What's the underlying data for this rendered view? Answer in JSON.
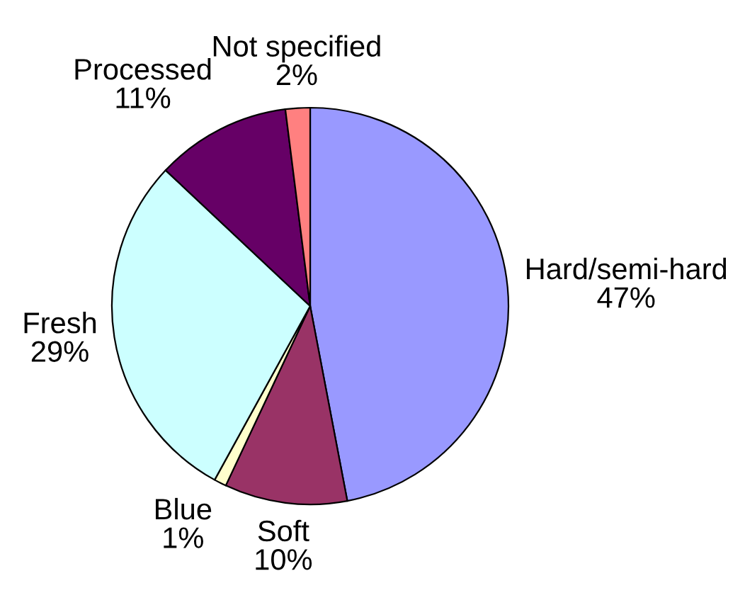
{
  "chart_data": {
    "type": "pie",
    "categories": [
      "Hard/semi-hard",
      "Soft",
      "Blue",
      "Fresh",
      "Processed",
      "Not specified"
    ],
    "values": [
      47,
      10,
      1,
      29,
      11,
      2
    ],
    "value_labels": [
      "47%",
      "10%",
      "1%",
      "29%",
      "11%",
      "2%"
    ],
    "colors": [
      "#9999ff",
      "#993366",
      "#ffffcc",
      "#ccffff",
      "#660066",
      "#ff8080"
    ]
  }
}
